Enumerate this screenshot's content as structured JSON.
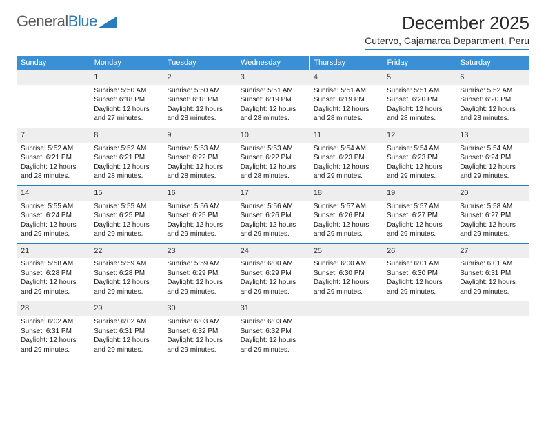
{
  "brand": {
    "part1": "General",
    "part2": "Blue"
  },
  "title": "December 2025",
  "location": "Cutervo, Cajamarca Department, Peru",
  "colors": {
    "header_bg": "#3b8fd4",
    "rule": "#2b7bbf",
    "daynum_bg": "#eeeeee",
    "text": "#1a1a1a"
  },
  "weekdays": [
    "Sunday",
    "Monday",
    "Tuesday",
    "Wednesday",
    "Thursday",
    "Friday",
    "Saturday"
  ],
  "weeks": [
    {
      "nums": [
        "",
        "1",
        "2",
        "3",
        "4",
        "5",
        "6"
      ],
      "cells": [
        null,
        {
          "sr": "5:50 AM",
          "ss": "6:18 PM",
          "dl1": "Daylight: 12 hours",
          "dl2": "and 27 minutes."
        },
        {
          "sr": "5:50 AM",
          "ss": "6:18 PM",
          "dl1": "Daylight: 12 hours",
          "dl2": "and 28 minutes."
        },
        {
          "sr": "5:51 AM",
          "ss": "6:19 PM",
          "dl1": "Daylight: 12 hours",
          "dl2": "and 28 minutes."
        },
        {
          "sr": "5:51 AM",
          "ss": "6:19 PM",
          "dl1": "Daylight: 12 hours",
          "dl2": "and 28 minutes."
        },
        {
          "sr": "5:51 AM",
          "ss": "6:20 PM",
          "dl1": "Daylight: 12 hours",
          "dl2": "and 28 minutes."
        },
        {
          "sr": "5:52 AM",
          "ss": "6:20 PM",
          "dl1": "Daylight: 12 hours",
          "dl2": "and 28 minutes."
        }
      ]
    },
    {
      "nums": [
        "7",
        "8",
        "9",
        "10",
        "11",
        "12",
        "13"
      ],
      "cells": [
        {
          "sr": "5:52 AM",
          "ss": "6:21 PM",
          "dl1": "Daylight: 12 hours",
          "dl2": "and 28 minutes."
        },
        {
          "sr": "5:52 AM",
          "ss": "6:21 PM",
          "dl1": "Daylight: 12 hours",
          "dl2": "and 28 minutes."
        },
        {
          "sr": "5:53 AM",
          "ss": "6:22 PM",
          "dl1": "Daylight: 12 hours",
          "dl2": "and 28 minutes."
        },
        {
          "sr": "5:53 AM",
          "ss": "6:22 PM",
          "dl1": "Daylight: 12 hours",
          "dl2": "and 28 minutes."
        },
        {
          "sr": "5:54 AM",
          "ss": "6:23 PM",
          "dl1": "Daylight: 12 hours",
          "dl2": "and 29 minutes."
        },
        {
          "sr": "5:54 AM",
          "ss": "6:23 PM",
          "dl1": "Daylight: 12 hours",
          "dl2": "and 29 minutes."
        },
        {
          "sr": "5:54 AM",
          "ss": "6:24 PM",
          "dl1": "Daylight: 12 hours",
          "dl2": "and 29 minutes."
        }
      ]
    },
    {
      "nums": [
        "14",
        "15",
        "16",
        "17",
        "18",
        "19",
        "20"
      ],
      "cells": [
        {
          "sr": "5:55 AM",
          "ss": "6:24 PM",
          "dl1": "Daylight: 12 hours",
          "dl2": "and 29 minutes."
        },
        {
          "sr": "5:55 AM",
          "ss": "6:25 PM",
          "dl1": "Daylight: 12 hours",
          "dl2": "and 29 minutes."
        },
        {
          "sr": "5:56 AM",
          "ss": "6:25 PM",
          "dl1": "Daylight: 12 hours",
          "dl2": "and 29 minutes."
        },
        {
          "sr": "5:56 AM",
          "ss": "6:26 PM",
          "dl1": "Daylight: 12 hours",
          "dl2": "and 29 minutes."
        },
        {
          "sr": "5:57 AM",
          "ss": "6:26 PM",
          "dl1": "Daylight: 12 hours",
          "dl2": "and 29 minutes."
        },
        {
          "sr": "5:57 AM",
          "ss": "6:27 PM",
          "dl1": "Daylight: 12 hours",
          "dl2": "and 29 minutes."
        },
        {
          "sr": "5:58 AM",
          "ss": "6:27 PM",
          "dl1": "Daylight: 12 hours",
          "dl2": "and 29 minutes."
        }
      ]
    },
    {
      "nums": [
        "21",
        "22",
        "23",
        "24",
        "25",
        "26",
        "27"
      ],
      "cells": [
        {
          "sr": "5:58 AM",
          "ss": "6:28 PM",
          "dl1": "Daylight: 12 hours",
          "dl2": "and 29 minutes."
        },
        {
          "sr": "5:59 AM",
          "ss": "6:28 PM",
          "dl1": "Daylight: 12 hours",
          "dl2": "and 29 minutes."
        },
        {
          "sr": "5:59 AM",
          "ss": "6:29 PM",
          "dl1": "Daylight: 12 hours",
          "dl2": "and 29 minutes."
        },
        {
          "sr": "6:00 AM",
          "ss": "6:29 PM",
          "dl1": "Daylight: 12 hours",
          "dl2": "and 29 minutes."
        },
        {
          "sr": "6:00 AM",
          "ss": "6:30 PM",
          "dl1": "Daylight: 12 hours",
          "dl2": "and 29 minutes."
        },
        {
          "sr": "6:01 AM",
          "ss": "6:30 PM",
          "dl1": "Daylight: 12 hours",
          "dl2": "and 29 minutes."
        },
        {
          "sr": "6:01 AM",
          "ss": "6:31 PM",
          "dl1": "Daylight: 12 hours",
          "dl2": "and 29 minutes."
        }
      ]
    },
    {
      "nums": [
        "28",
        "29",
        "30",
        "31",
        "",
        "",
        ""
      ],
      "cells": [
        {
          "sr": "6:02 AM",
          "ss": "6:31 PM",
          "dl1": "Daylight: 12 hours",
          "dl2": "and 29 minutes."
        },
        {
          "sr": "6:02 AM",
          "ss": "6:31 PM",
          "dl1": "Daylight: 12 hours",
          "dl2": "and 29 minutes."
        },
        {
          "sr": "6:03 AM",
          "ss": "6:32 PM",
          "dl1": "Daylight: 12 hours",
          "dl2": "and 29 minutes."
        },
        {
          "sr": "6:03 AM",
          "ss": "6:32 PM",
          "dl1": "Daylight: 12 hours",
          "dl2": "and 29 minutes."
        },
        null,
        null,
        null
      ]
    }
  ]
}
